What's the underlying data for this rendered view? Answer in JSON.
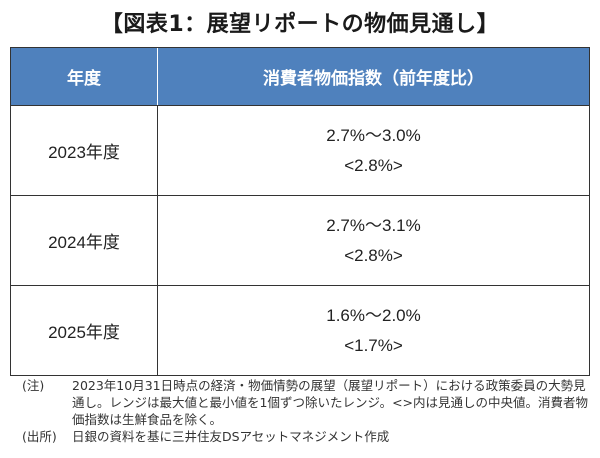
{
  "title": "【図表1：展望リポートの物価見通し】",
  "table": {
    "header": {
      "year": "年度",
      "cpi": "消費者物価指数（前年度比）"
    },
    "rows": [
      {
        "year": "2023年度",
        "range": "2.7%～3.0%",
        "median": "<2.8%>"
      },
      {
        "year": "2024年度",
        "range": "2.7%～3.1%",
        "median": "<2.8%>"
      },
      {
        "year": "2025年度",
        "range": "1.6%～2.0%",
        "median": "<1.7%>"
      }
    ]
  },
  "notes": {
    "note_label": "(注)",
    "note_text": "2023年10月31日時点の経済・物価情勢の展望（展望リポート）における政策委員の大勢見通し。レンジは最大値と最小値を1個ずつ除いたレンジ。<>内は見通しの中央値。消費者物価指数は生鮮食品を除く。",
    "source_label": "(出所)",
    "source_text": "日銀の資料を基に三井住友DSアセットマネジメント作成"
  },
  "colors": {
    "header_bg": "#4f81bd",
    "header_text": "#ffffff"
  }
}
